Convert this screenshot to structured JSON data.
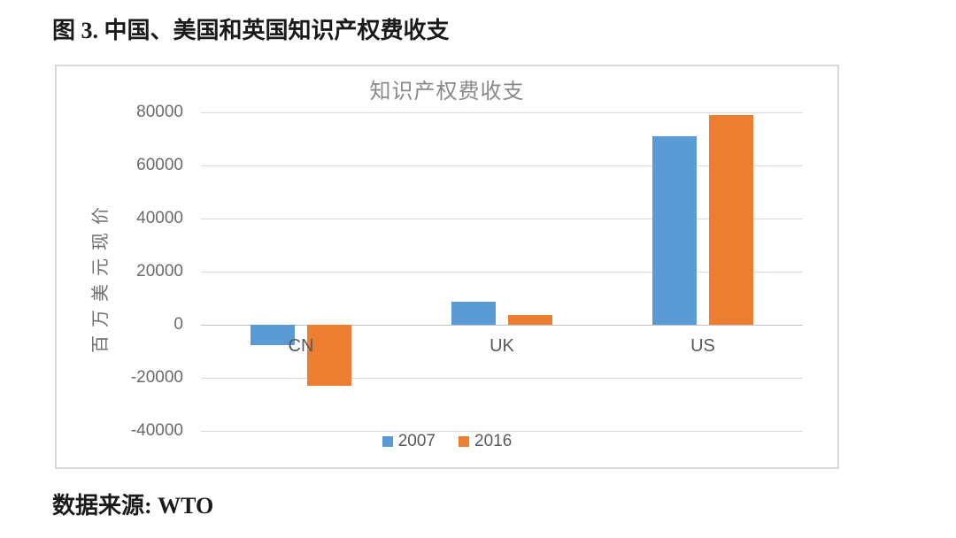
{
  "figure": {
    "caption": "图 3. 中国、美国和英国知识产权费收支",
    "source_label": "数据来源: WTO"
  },
  "chart_data": {
    "type": "bar",
    "title": "知识产权费收支",
    "xlabel": "",
    "ylabel": "百万美元现价",
    "categories": [
      "CN",
      "UK",
      "US"
    ],
    "series": [
      {
        "name": "2007",
        "color": "#5B9BD5",
        "values": [
          -7600,
          8800,
          71000
        ]
      },
      {
        "name": "2016",
        "color": "#ED7D31",
        "values": [
          -23000,
          3700,
          79000
        ]
      }
    ],
    "ylim": [
      -40000,
      80000
    ],
    "yticks": [
      80000,
      60000,
      40000,
      20000,
      0,
      -20000,
      -40000
    ],
    "grid": true,
    "legend_position": "bottom"
  }
}
